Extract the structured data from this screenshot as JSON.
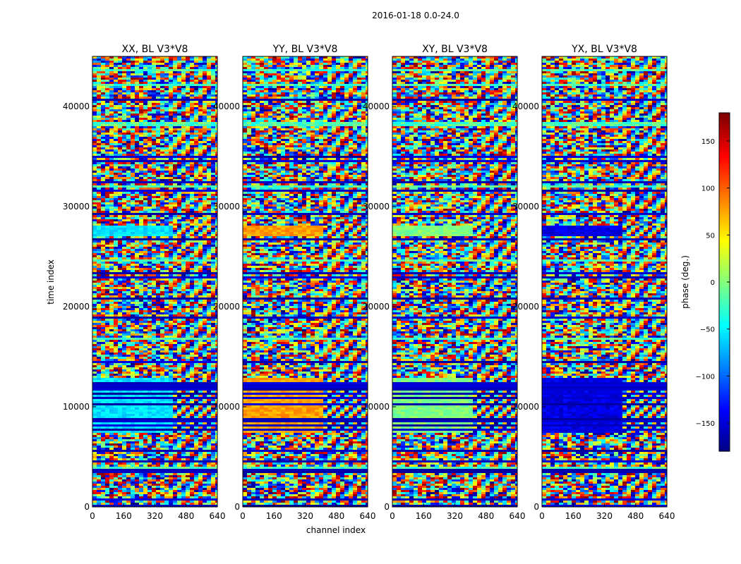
{
  "chart_data": {
    "type": "heatmap",
    "suptitle": "2016-01-18 0.0-24.0",
    "xlabel": "channel index",
    "ylabel": "time index",
    "xlim": [
      0,
      640
    ],
    "ylim": [
      0,
      45000
    ],
    "xticks": [
      "0",
      "160",
      "320",
      "480",
      "640"
    ],
    "yticks": [
      "0",
      "10000",
      "20000",
      "30000",
      "40000"
    ],
    "colormap": "jet",
    "colorbar": {
      "label": "phase (deg.)",
      "range": [
        -180,
        180
      ],
      "ticks": [
        "−150",
        "−100",
        "−50",
        "0",
        "50",
        "100",
        "150"
      ],
      "tick_values": [
        -150,
        -100,
        -50,
        0,
        50,
        100,
        150
      ]
    },
    "panels": [
      {
        "title": "XX, BL V3*V8",
        "pol": "XX"
      },
      {
        "title": "YY, BL V3*V8",
        "pol": "YY"
      },
      {
        "title": "XY, BL V3*V8",
        "pol": "XY"
      },
      {
        "title": "YX, BL V3*V8",
        "pol": "YX"
      }
    ],
    "grid": false
  }
}
